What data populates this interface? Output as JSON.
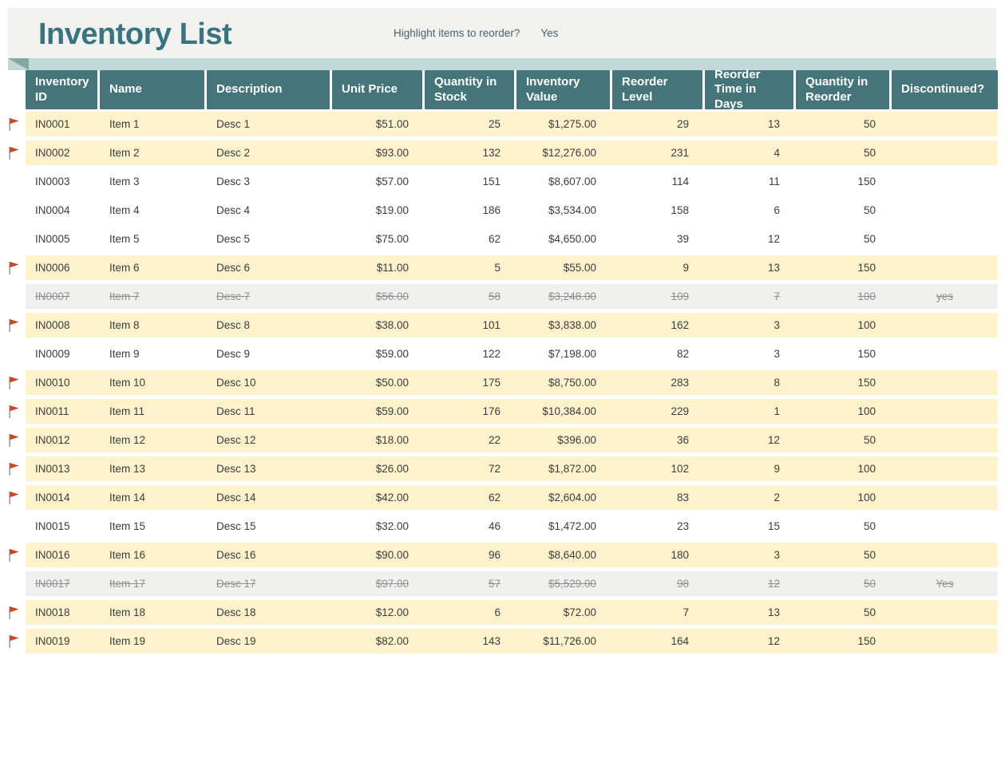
{
  "page": {
    "title": "Inventory List",
    "highlight_label": "Highlight items to reorder?",
    "highlight_value": "Yes"
  },
  "icons": {
    "reorder_flag": "flag-icon"
  },
  "colors": {
    "banner_bg": "#f1f1f0",
    "title_teal": "#39747e",
    "header_teal": "#45757b",
    "ribbon_teal": "#c1d9d8",
    "ribbon_fold": "#82a8a6",
    "row_yellow": "#fdf2cc",
    "row_gray": "#f0f0ef",
    "text_dark": "#3c3c3c",
    "text_muted": "#8f8f8f",
    "flag_red": "#c8472b",
    "flag_pole": "#9b9b9b",
    "label_teal": "#44656b"
  },
  "table": {
    "columns": [
      {
        "key": "id",
        "label": "Inventory ID",
        "align": "left"
      },
      {
        "key": "name",
        "label": "Name",
        "align": "left"
      },
      {
        "key": "desc",
        "label": "Description",
        "align": "left"
      },
      {
        "key": "price",
        "label": "Unit Price",
        "align": "right"
      },
      {
        "key": "qty",
        "label": "Quantity in Stock",
        "align": "right"
      },
      {
        "key": "value",
        "label": "Inventory Value",
        "align": "right"
      },
      {
        "key": "reorder_level",
        "label": "Reorder Level",
        "align": "right"
      },
      {
        "key": "reorder_time",
        "label": "Reorder Time in Days",
        "align": "right"
      },
      {
        "key": "qty_reorder",
        "label": "Quantity in Reorder",
        "align": "right"
      },
      {
        "key": "discontinued",
        "label": "Discontinued?",
        "align": "center"
      }
    ],
    "rows": [
      {
        "id": "IN0001",
        "name": "Item 1",
        "desc": "Desc 1",
        "price": "$51.00",
        "qty": "25",
        "value": "$1,275.00",
        "reorder_level": "29",
        "reorder_time": "13",
        "qty_reorder": "50",
        "discontinued": "",
        "flag": true,
        "state": "reorder"
      },
      {
        "id": "IN0002",
        "name": "Item 2",
        "desc": "Desc 2",
        "price": "$93.00",
        "qty": "132",
        "value": "$12,276.00",
        "reorder_level": "231",
        "reorder_time": "4",
        "qty_reorder": "50",
        "discontinued": "",
        "flag": true,
        "state": "reorder"
      },
      {
        "id": "IN0003",
        "name": "Item 3",
        "desc": "Desc 3",
        "price": "$57.00",
        "qty": "151",
        "value": "$8,607.00",
        "reorder_level": "114",
        "reorder_time": "11",
        "qty_reorder": "150",
        "discontinued": "",
        "flag": false,
        "state": "normal"
      },
      {
        "id": "IN0004",
        "name": "Item 4",
        "desc": "Desc 4",
        "price": "$19.00",
        "qty": "186",
        "value": "$3,534.00",
        "reorder_level": "158",
        "reorder_time": "6",
        "qty_reorder": "50",
        "discontinued": "",
        "flag": false,
        "state": "normal"
      },
      {
        "id": "IN0005",
        "name": "Item 5",
        "desc": "Desc 5",
        "price": "$75.00",
        "qty": "62",
        "value": "$4,650.00",
        "reorder_level": "39",
        "reorder_time": "12",
        "qty_reorder": "50",
        "discontinued": "",
        "flag": false,
        "state": "normal"
      },
      {
        "id": "IN0006",
        "name": "Item 6",
        "desc": "Desc 6",
        "price": "$11.00",
        "qty": "5",
        "value": "$55.00",
        "reorder_level": "9",
        "reorder_time": "13",
        "qty_reorder": "150",
        "discontinued": "",
        "flag": true,
        "state": "reorder"
      },
      {
        "id": "IN0007",
        "name": "Item 7",
        "desc": "Desc 7",
        "price": "$56.00",
        "qty": "58",
        "value": "$3,248.00",
        "reorder_level": "109",
        "reorder_time": "7",
        "qty_reorder": "100",
        "discontinued": "yes",
        "flag": false,
        "state": "discontinued"
      },
      {
        "id": "IN0008",
        "name": "Item 8",
        "desc": "Desc 8",
        "price": "$38.00",
        "qty": "101",
        "value": "$3,838.00",
        "reorder_level": "162",
        "reorder_time": "3",
        "qty_reorder": "100",
        "discontinued": "",
        "flag": true,
        "state": "reorder"
      },
      {
        "id": "IN0009",
        "name": "Item 9",
        "desc": "Desc 9",
        "price": "$59.00",
        "qty": "122",
        "value": "$7,198.00",
        "reorder_level": "82",
        "reorder_time": "3",
        "qty_reorder": "150",
        "discontinued": "",
        "flag": false,
        "state": "normal"
      },
      {
        "id": "IN0010",
        "name": "Item 10",
        "desc": "Desc 10",
        "price": "$50.00",
        "qty": "175",
        "value": "$8,750.00",
        "reorder_level": "283",
        "reorder_time": "8",
        "qty_reorder": "150",
        "discontinued": "",
        "flag": true,
        "state": "reorder"
      },
      {
        "id": "IN0011",
        "name": "Item 11",
        "desc": "Desc 11",
        "price": "$59.00",
        "qty": "176",
        "value": "$10,384.00",
        "reorder_level": "229",
        "reorder_time": "1",
        "qty_reorder": "100",
        "discontinued": "",
        "flag": true,
        "state": "reorder"
      },
      {
        "id": "IN0012",
        "name": "Item 12",
        "desc": "Desc 12",
        "price": "$18.00",
        "qty": "22",
        "value": "$396.00",
        "reorder_level": "36",
        "reorder_time": "12",
        "qty_reorder": "50",
        "discontinued": "",
        "flag": true,
        "state": "reorder"
      },
      {
        "id": "IN0013",
        "name": "Item 13",
        "desc": "Desc 13",
        "price": "$26.00",
        "qty": "72",
        "value": "$1,872.00",
        "reorder_level": "102",
        "reorder_time": "9",
        "qty_reorder": "100",
        "discontinued": "",
        "flag": true,
        "state": "reorder"
      },
      {
        "id": "IN0014",
        "name": "Item 14",
        "desc": "Desc 14",
        "price": "$42.00",
        "qty": "62",
        "value": "$2,604.00",
        "reorder_level": "83",
        "reorder_time": "2",
        "qty_reorder": "100",
        "discontinued": "",
        "flag": true,
        "state": "reorder"
      },
      {
        "id": "IN0015",
        "name": "Item 15",
        "desc": "Desc 15",
        "price": "$32.00",
        "qty": "46",
        "value": "$1,472.00",
        "reorder_level": "23",
        "reorder_time": "15",
        "qty_reorder": "50",
        "discontinued": "",
        "flag": false,
        "state": "normal"
      },
      {
        "id": "IN0016",
        "name": "Item 16",
        "desc": "Desc 16",
        "price": "$90.00",
        "qty": "96",
        "value": "$8,640.00",
        "reorder_level": "180",
        "reorder_time": "3",
        "qty_reorder": "50",
        "discontinued": "",
        "flag": true,
        "state": "reorder"
      },
      {
        "id": "IN0017",
        "name": "Item 17",
        "desc": "Desc 17",
        "price": "$97.00",
        "qty": "57",
        "value": "$5,529.00",
        "reorder_level": "98",
        "reorder_time": "12",
        "qty_reorder": "50",
        "discontinued": "Yes",
        "flag": false,
        "state": "discontinued"
      },
      {
        "id": "IN0018",
        "name": "Item 18",
        "desc": "Desc 18",
        "price": "$12.00",
        "qty": "6",
        "value": "$72.00",
        "reorder_level": "7",
        "reorder_time": "13",
        "qty_reorder": "50",
        "discontinued": "",
        "flag": true,
        "state": "reorder"
      },
      {
        "id": "IN0019",
        "name": "Item 19",
        "desc": "Desc 19",
        "price": "$82.00",
        "qty": "143",
        "value": "$11,726.00",
        "reorder_level": "164",
        "reorder_time": "12",
        "qty_reorder": "150",
        "discontinued": "",
        "flag": true,
        "state": "reorder"
      }
    ]
  }
}
